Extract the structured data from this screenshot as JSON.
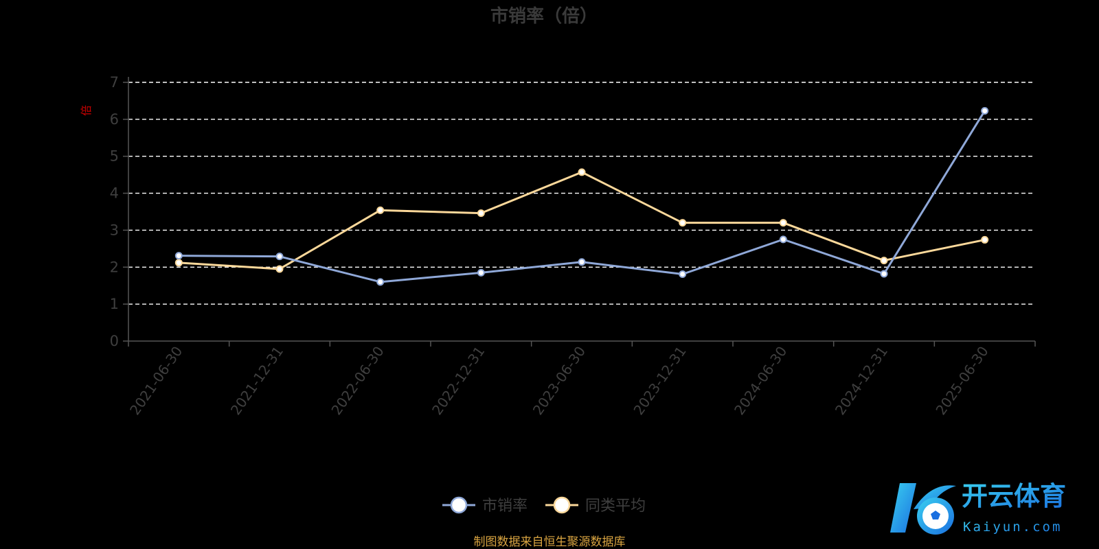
{
  "chart_data": {
    "type": "line",
    "title": "市销率（倍）",
    "unit_label": "倍",
    "categories": [
      "2021-06-30",
      "2021-12-31",
      "2022-06-30",
      "2022-12-31",
      "2023-06-30",
      "2023-12-31",
      "2024-06-30",
      "2024-12-31",
      "2025-06-30"
    ],
    "series": [
      {
        "name": "市销率",
        "color": "#8fa8d8",
        "values": [
          2.31,
          2.29,
          1.6,
          1.85,
          2.14,
          1.81,
          2.75,
          1.82,
          6.23
        ]
      },
      {
        "name": "同类平均",
        "color": "#fbd89a",
        "values": [
          2.12,
          1.95,
          3.54,
          3.46,
          4.57,
          3.2,
          3.2,
          2.18,
          2.74
        ]
      }
    ],
    "ylim": [
      0,
      7
    ],
    "yticks": [
      "0",
      "1",
      "2",
      "3",
      "4",
      "5",
      "6",
      "7"
    ],
    "grid": true,
    "grid_color": "#ffffff",
    "legend_position": "bottom-center",
    "source_note": "制图数据来自恒生聚源数据库"
  },
  "watermark": {
    "brand_cn": "开云体育",
    "brand_en": "Kaiyun.com",
    "logo_icon": "soccer-ball-icon"
  }
}
